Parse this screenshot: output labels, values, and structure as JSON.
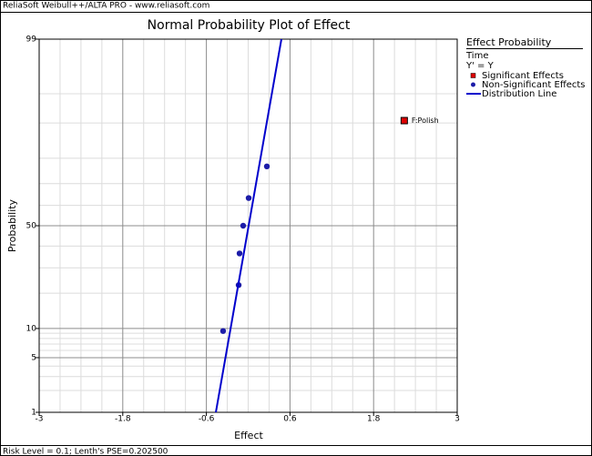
{
  "header": "ReliaSoft Weibull++/ALTA PRO - www.reliasoft.com",
  "footer": "Risk Level = 0.1; Lenth's PSE=0.202500",
  "chart_data": {
    "type": "scatter",
    "title": "Normal Probability Plot of Effect",
    "x_label": "Effect",
    "y_label": "Probability",
    "y_scale": "normal-probability",
    "xlim": [
      -3,
      3
    ],
    "ylim": [
      1,
      99
    ],
    "xticks": [
      -3,
      -1.8,
      -0.6,
      0.6,
      1.8,
      3
    ],
    "yticks": [
      1,
      5,
      10,
      50,
      99
    ],
    "x_minor_grid": [
      -2.7,
      -2.4,
      -2.1,
      -1.5,
      -1.2,
      -0.9,
      -0.3,
      0,
      0.3,
      0.9,
      1.2,
      1.5,
      2.1,
      2.4,
      2.7
    ],
    "y_minor_grid": [
      2,
      3,
      4,
      6,
      7,
      8,
      9,
      20,
      30,
      40,
      60,
      70,
      80,
      90,
      95
    ],
    "grid": true,
    "legend": {
      "title": "Effect Probability",
      "lines": [
        "Time",
        "Y' = Y"
      ],
      "position": "right"
    },
    "series": [
      {
        "name": "Significant Effects",
        "kind": "points",
        "marker": "square",
        "color": "#dd0000",
        "x": [
          2.24
        ],
        "values": [
          90.5
        ],
        "labels": [
          "F:Polish"
        ]
      },
      {
        "name": "Non-Significant Effects",
        "kind": "points",
        "marker": "circle",
        "color": "#1c1ca8",
        "x": [
          -0.36,
          -0.137,
          -0.124,
          -0.072,
          0.007,
          0.268
        ],
        "values": [
          9.46,
          22.97,
          36.49,
          50,
          63.51,
          77.03
        ]
      },
      {
        "name": "Distribution Line",
        "kind": "line",
        "color": "#0000cc",
        "x": [
          -0.464,
          0.477
        ],
        "values": [
          1,
          99
        ]
      }
    ]
  }
}
